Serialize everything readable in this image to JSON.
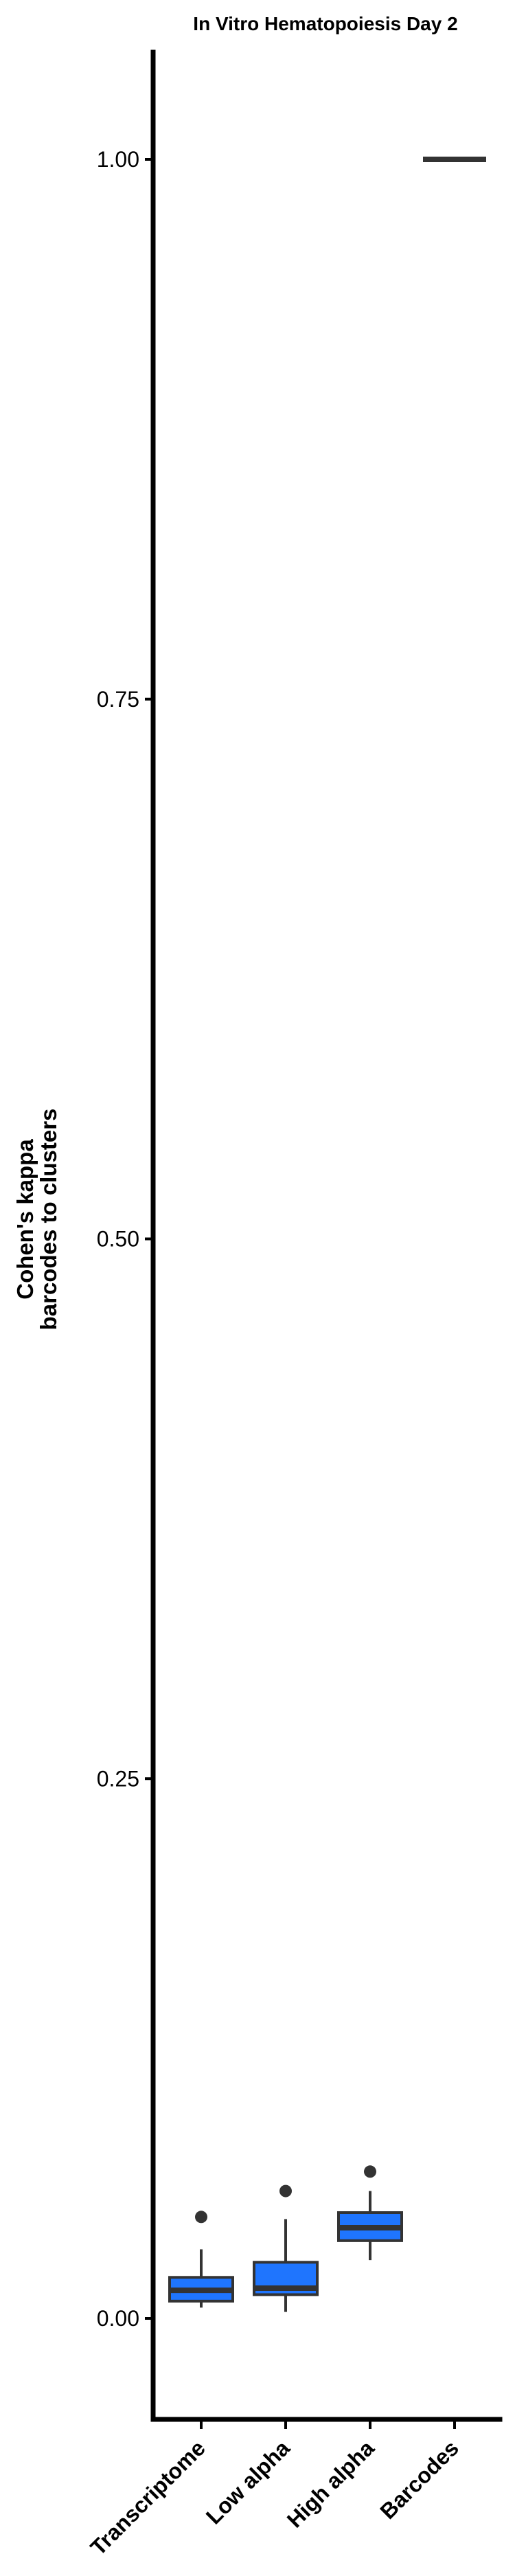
{
  "chart_data": {
    "type": "boxplot",
    "title": "In Vitro Hematopoiesis Day 2",
    "ylabel_line1": "Cohen's kappa",
    "ylabel_line2": "barcodes to clusters",
    "xlabel": "",
    "ylim": [
      -0.045,
      1.05
    ],
    "yticks": [
      0.0,
      0.25,
      0.5,
      0.75,
      1.0
    ],
    "ytick_labels": [
      "0.00",
      "0.25",
      "0.50",
      "0.75",
      "1.00"
    ],
    "categories": [
      "Transcriptome",
      "Low alpha",
      "High alpha",
      "Barcodes"
    ],
    "grid": false,
    "box_color": "#1f75fe",
    "series": [
      {
        "category": "Transcriptome",
        "whisker_low": 0.005,
        "q1": 0.008,
        "median": 0.013,
        "q3": 0.019,
        "whisker_high": 0.032,
        "outliers": [
          0.047
        ]
      },
      {
        "category": "Low alpha",
        "whisker_low": 0.003,
        "q1": 0.011,
        "median": 0.014,
        "q3": 0.026,
        "whisker_high": 0.046,
        "outliers": [
          0.059
        ]
      },
      {
        "category": "High alpha",
        "whisker_low": 0.027,
        "q1": 0.036,
        "median": 0.042,
        "q3": 0.049,
        "whisker_high": 0.059,
        "outliers": [
          0.068
        ]
      },
      {
        "category": "Barcodes",
        "whisker_low": 1.0,
        "q1": 1.0,
        "median": 1.0,
        "q3": 1.0,
        "whisker_high": 1.0,
        "outliers": []
      }
    ]
  }
}
